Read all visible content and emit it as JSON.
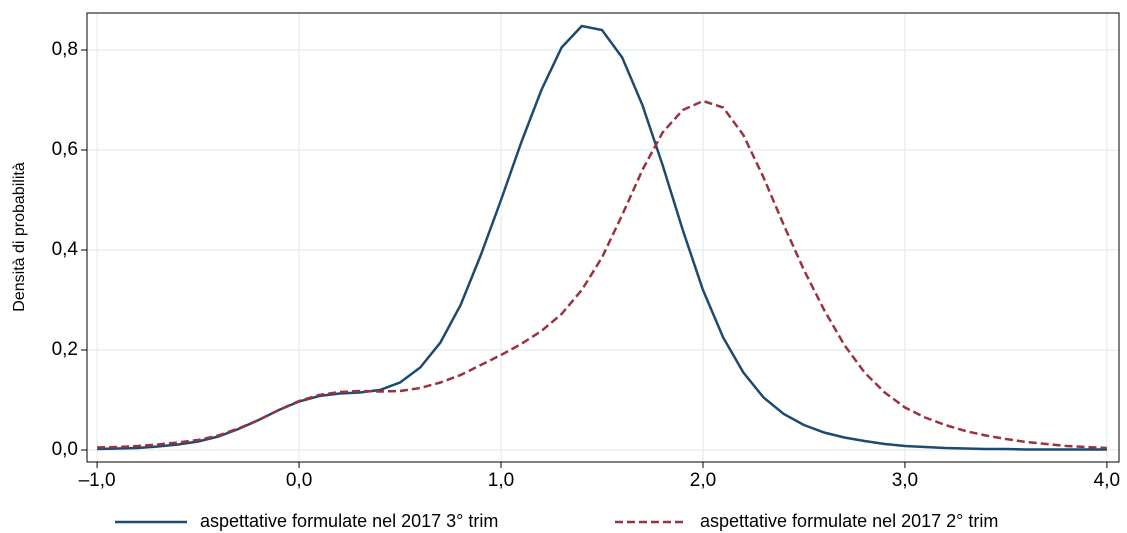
{
  "chart_data": {
    "type": "line",
    "y_label": "Densità di probabilità",
    "x": [
      -1.0,
      -0.9,
      -0.8,
      -0.7,
      -0.6,
      -0.5,
      -0.4,
      -0.3,
      -0.2,
      -0.1,
      0.0,
      0.1,
      0.2,
      0.3,
      0.4,
      0.5,
      0.6,
      0.7,
      0.8,
      0.9,
      1.0,
      1.1,
      1.2,
      1.3,
      1.4,
      1.5,
      1.6,
      1.7,
      1.8,
      1.9,
      2.0,
      2.1,
      2.2,
      2.3,
      2.4,
      2.5,
      2.6,
      2.7,
      2.8,
      2.9,
      3.0,
      3.1,
      3.2,
      3.3,
      3.4,
      3.5,
      3.6,
      3.7,
      3.8,
      3.9,
      4.0
    ],
    "series": [
      {
        "name": "aspettative formulate nel 2017 3° trim",
        "color": "#1f4a6e",
        "dash": false,
        "values": [
          0.002,
          0.003,
          0.004,
          0.007,
          0.011,
          0.017,
          0.027,
          0.042,
          0.06,
          0.08,
          0.097,
          0.108,
          0.113,
          0.115,
          0.12,
          0.135,
          0.165,
          0.215,
          0.29,
          0.39,
          0.5,
          0.615,
          0.72,
          0.805,
          0.848,
          0.84,
          0.785,
          0.69,
          0.57,
          0.44,
          0.32,
          0.225,
          0.155,
          0.105,
          0.072,
          0.05,
          0.035,
          0.025,
          0.018,
          0.012,
          0.008,
          0.006,
          0.004,
          0.003,
          0.002,
          0.002,
          0.001,
          0.001,
          0.001,
          0.001,
          0.001
        ]
      },
      {
        "name": "aspettative formulate nel 2017 2° trim",
        "color": "#9a3340",
        "dash": true,
        "values": [
          0.005,
          0.006,
          0.008,
          0.011,
          0.015,
          0.02,
          0.029,
          0.043,
          0.06,
          0.08,
          0.098,
          0.11,
          0.116,
          0.118,
          0.117,
          0.118,
          0.124,
          0.135,
          0.15,
          0.17,
          0.19,
          0.212,
          0.238,
          0.272,
          0.32,
          0.385,
          0.47,
          0.56,
          0.635,
          0.68,
          0.698,
          0.685,
          0.63,
          0.545,
          0.45,
          0.36,
          0.28,
          0.21,
          0.155,
          0.115,
          0.085,
          0.065,
          0.05,
          0.038,
          0.029,
          0.022,
          0.016,
          0.012,
          0.008,
          0.006,
          0.004
        ]
      }
    ],
    "xlim": [
      -1.05,
      4.06
    ],
    "ylim": [
      -0.024,
      0.874
    ],
    "xticks": [
      {
        "value": -1,
        "label": "–1,0"
      },
      {
        "value": 0,
        "label": "0,0"
      },
      {
        "value": 1,
        "label": "1,0"
      },
      {
        "value": 2,
        "label": "2,0"
      },
      {
        "value": 3,
        "label": "3,0"
      },
      {
        "value": 4,
        "label": "4,0"
      }
    ],
    "yticks": [
      {
        "value": 0,
        "label": "0,0"
      },
      {
        "value": 0.2,
        "label": "0,2"
      },
      {
        "value": 0.4,
        "label": "0,4"
      },
      {
        "value": 0.6,
        "label": "0,6"
      },
      {
        "value": 0.8,
        "label": "0,8"
      }
    ],
    "grid": true,
    "legend": "bottom"
  }
}
